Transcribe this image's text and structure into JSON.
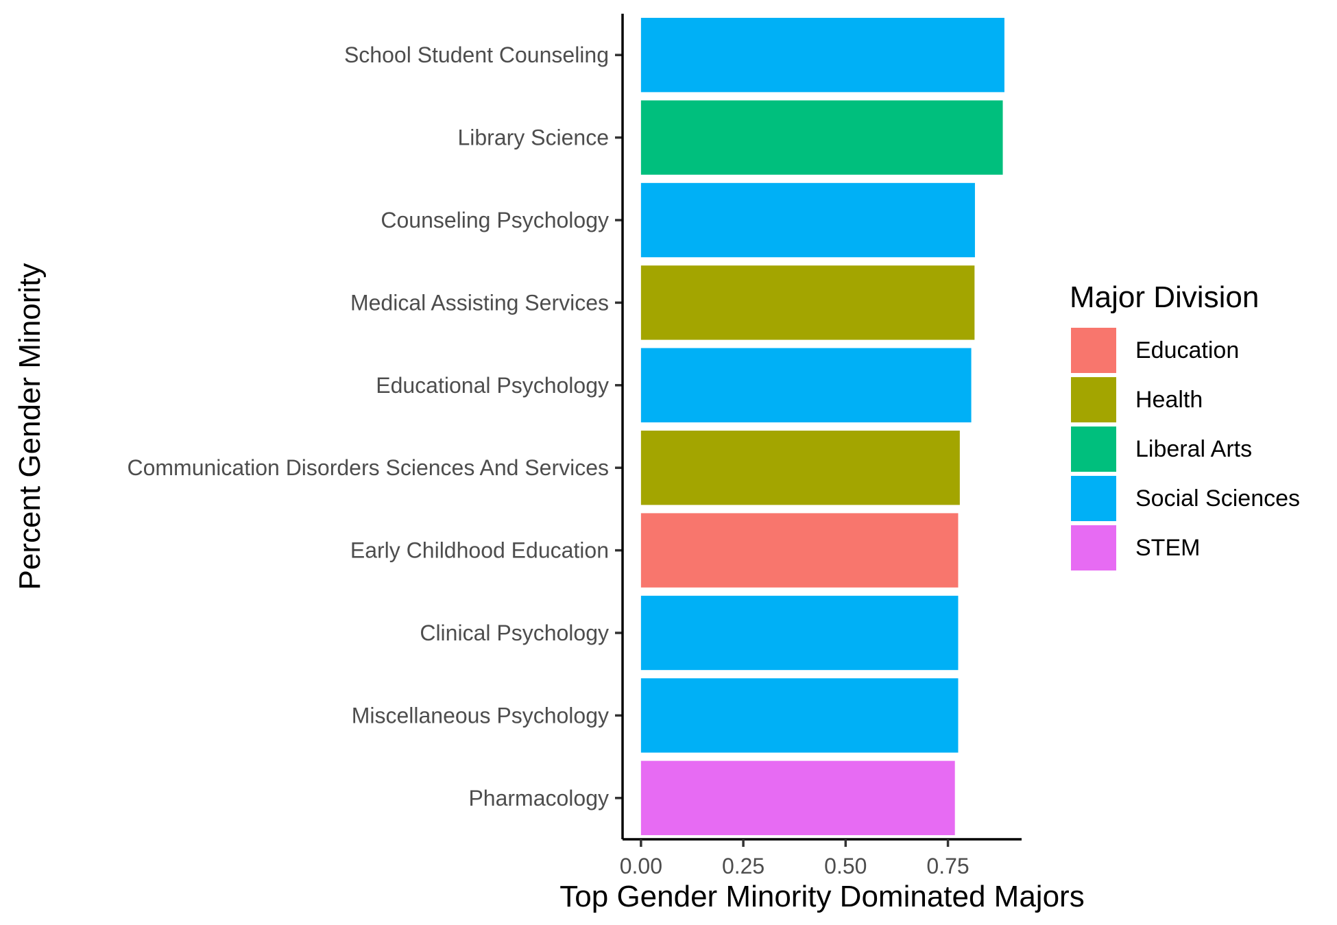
{
  "chart_data": {
    "type": "bar",
    "orientation": "horizontal",
    "xlabel": "Top Gender Minority Dominated Majors",
    "ylabel": "Percent Gender Minority",
    "xlim": [
      -0.045,
      0.93
    ],
    "x_ticks": [
      0,
      0.25,
      0.5,
      0.75
    ],
    "x_tick_labels": [
      "0.00",
      "0.25",
      "0.50",
      "0.75"
    ],
    "categories": [
      "School Student Counseling",
      "Library Science",
      "Counseling Psychology",
      "Medical Assisting Services",
      "Educational Psychology",
      "Communication Disorders Sciences And Services",
      "Early Childhood Education",
      "Clinical Psychology",
      "Miscellaneous Psychology",
      "Pharmacology"
    ],
    "values": [
      0.888,
      0.884,
      0.816,
      0.815,
      0.807,
      0.779,
      0.775,
      0.775,
      0.775,
      0.767
    ],
    "groups": [
      "Social Sciences",
      "Liberal Arts",
      "Social Sciences",
      "Health",
      "Social Sciences",
      "Health",
      "Education",
      "Social Sciences",
      "Social Sciences",
      "STEM"
    ],
    "legend": {
      "title": "Major Division",
      "position": "right",
      "entries": [
        {
          "name": "Education",
          "color": "#F8766D"
        },
        {
          "name": "Health",
          "color": "#A3A500"
        },
        {
          "name": "Liberal Arts",
          "color": "#00BF7D"
        },
        {
          "name": "Social Sciences",
          "color": "#00B0F6"
        },
        {
          "name": "STEM",
          "color": "#E76BF3"
        }
      ]
    },
    "grid": false
  }
}
